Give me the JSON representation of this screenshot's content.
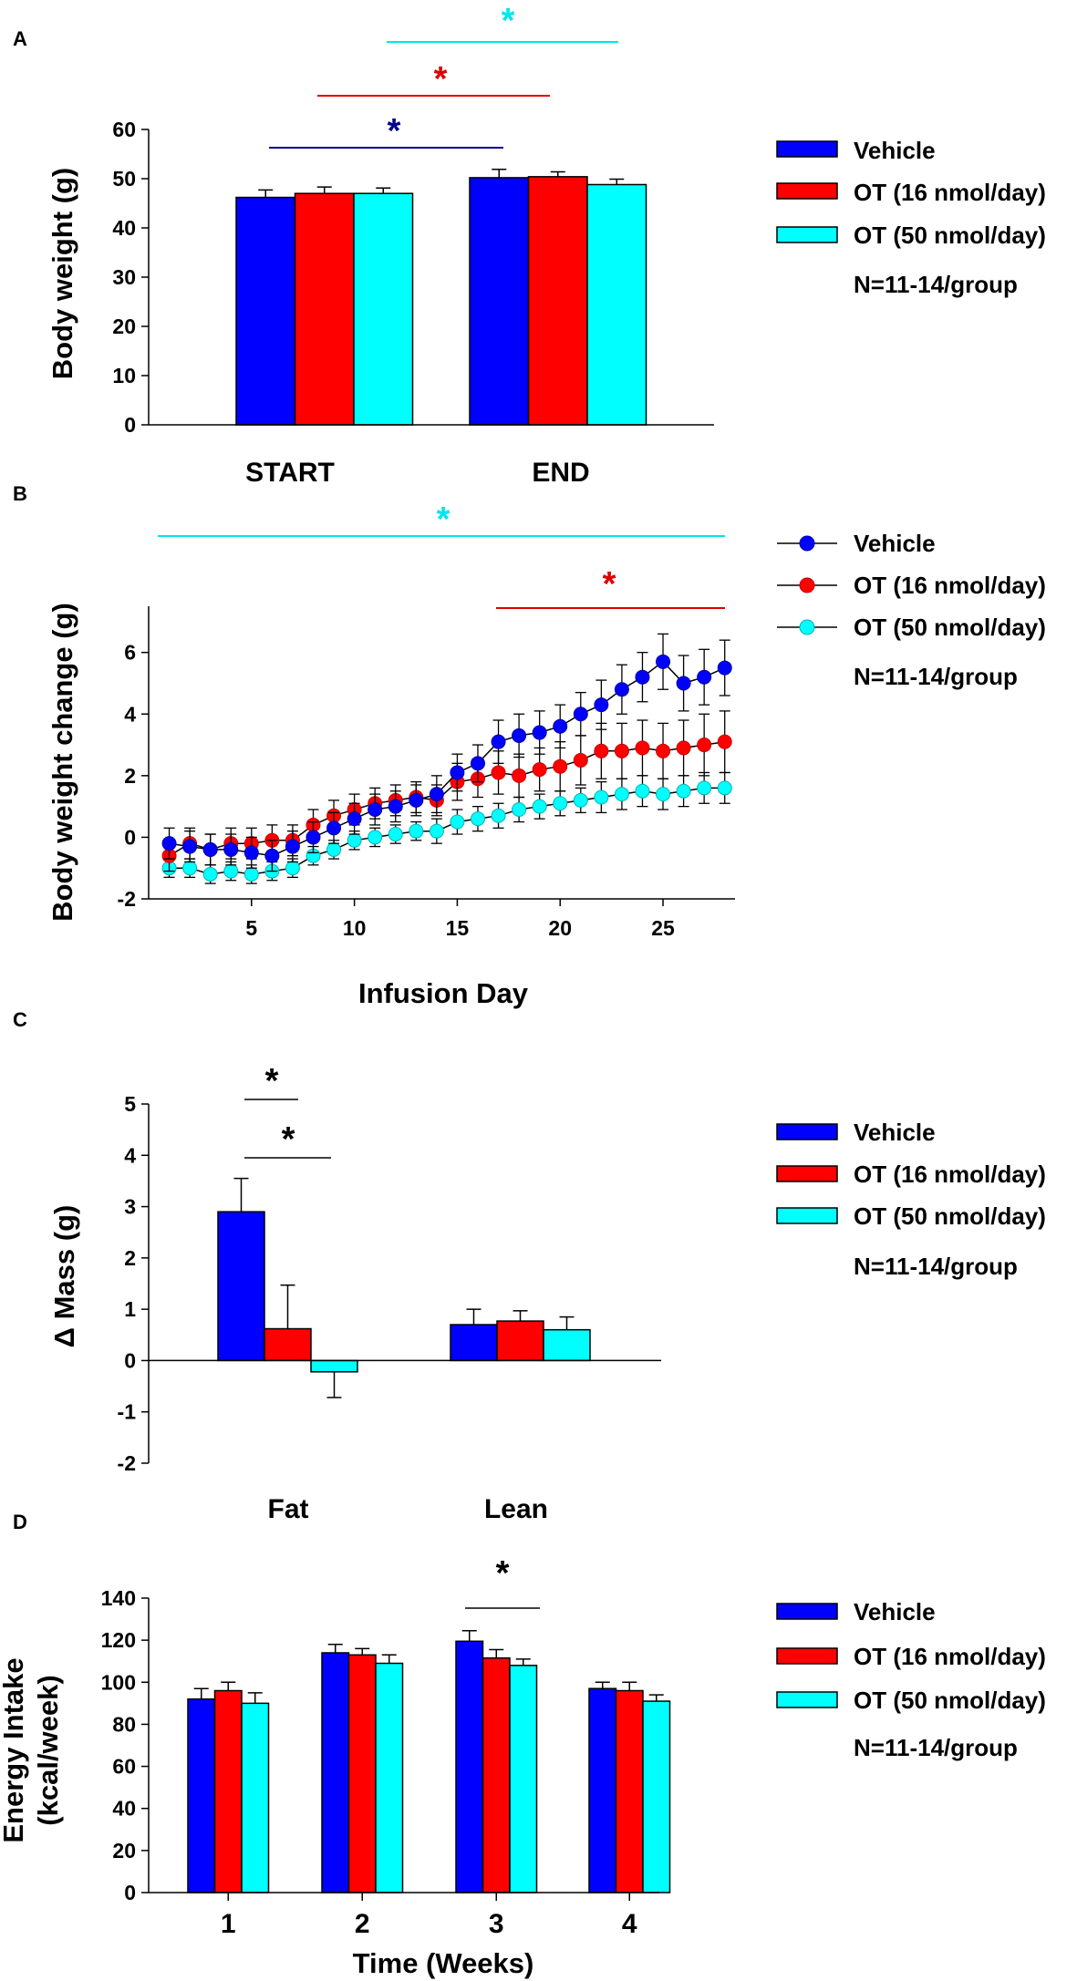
{
  "colors": {
    "vehicle": "#0000ff",
    "ot16": "#ff0000",
    "ot50": "#00ffff",
    "vehicle_dark": "#0000aa",
    "ot16_dark": "#cc0000",
    "ot50_dark": "#00b3b3",
    "sig_dark_blue": "#00008b",
    "sig_red": "#dd0000",
    "sig_cyan": "#00e5ee",
    "sig_black": "#000000"
  },
  "chart_data": [
    {
      "panel": "A",
      "type": "bar",
      "ylabel": "Body weight (g)",
      "xlabel": "",
      "ylim": [
        0,
        60
      ],
      "yticks": [
        "0",
        "10",
        "20",
        "30",
        "40",
        "50",
        "60"
      ],
      "categories": [
        "START",
        "END"
      ],
      "series": [
        {
          "name": "Vehicle",
          "values": [
            46.2,
            50.2
          ],
          "errors": [
            1.5,
            1.7
          ]
        },
        {
          "name": "OT (16 nmol/day)",
          "values": [
            47.0,
            50.4
          ],
          "errors": [
            1.3,
            1.0
          ]
        },
        {
          "name": "OT (50 nmol/day)",
          "values": [
            47.0,
            48.8
          ],
          "errors": [
            1.1,
            1.1
          ]
        }
      ],
      "legend": [
        "Vehicle",
        "OT (16 nmol/day)",
        "OT (50 nmol/day)"
      ],
      "note": "N=11-14/group",
      "significance": [
        {
          "label": "*",
          "color": "dark_blue"
        },
        {
          "label": "*",
          "color": "red"
        },
        {
          "label": "*",
          "color": "cyan"
        }
      ]
    },
    {
      "panel": "B",
      "type": "line",
      "ylabel": "Body weight change (g)",
      "xlabel": "Infusion Day",
      "xlim": [
        0,
        28.5
      ],
      "ylim": [
        -2,
        7.5
      ],
      "xticks": [
        "5",
        "10",
        "15",
        "20",
        "25"
      ],
      "yticks": [
        "-2",
        "0",
        "2",
        "4",
        "6"
      ],
      "x": [
        1,
        2,
        3,
        4,
        5,
        6,
        7,
        8,
        9,
        10,
        11,
        12,
        13,
        14,
        15,
        16,
        17,
        18,
        19,
        20,
        21,
        22,
        23,
        24,
        25,
        26,
        27,
        28
      ],
      "series": [
        {
          "name": "Vehicle",
          "values": [
            -0.2,
            -0.3,
            -0.4,
            -0.4,
            -0.5,
            -0.6,
            -0.3,
            0.0,
            0.3,
            0.6,
            0.9,
            1.0,
            1.2,
            1.4,
            2.1,
            2.4,
            3.1,
            3.3,
            3.4,
            3.6,
            4.0,
            4.3,
            4.8,
            5.2,
            5.7,
            5.0,
            5.2,
            5.5
          ],
          "errors": [
            0.5,
            0.5,
            0.5,
            0.5,
            0.5,
            0.5,
            0.5,
            0.5,
            0.5,
            0.5,
            0.5,
            0.5,
            0.5,
            0.6,
            0.6,
            0.6,
            0.7,
            0.7,
            0.7,
            0.7,
            0.7,
            0.8,
            0.8,
            0.8,
            0.9,
            0.9,
            0.9,
            0.9
          ]
        },
        {
          "name": "OT (16 nmol/day)",
          "values": [
            -0.6,
            -0.2,
            -0.4,
            -0.2,
            -0.2,
            -0.1,
            -0.1,
            0.4,
            0.7,
            0.9,
            1.1,
            1.2,
            1.3,
            1.2,
            1.8,
            1.9,
            2.1,
            2.0,
            2.2,
            2.3,
            2.5,
            2.8,
            2.8,
            2.9,
            2.8,
            2.9,
            3.0,
            3.1
          ],
          "errors": [
            0.5,
            0.5,
            0.5,
            0.5,
            0.5,
            0.5,
            0.5,
            0.5,
            0.5,
            0.5,
            0.5,
            0.5,
            0.5,
            0.5,
            0.6,
            0.6,
            0.7,
            0.7,
            0.7,
            0.8,
            0.8,
            0.9,
            0.9,
            0.9,
            0.9,
            0.9,
            1.0,
            1.0
          ]
        },
        {
          "name": "OT (50 nmol/day)",
          "values": [
            -1.0,
            -1.0,
            -1.2,
            -1.1,
            -1.2,
            -1.1,
            -1.0,
            -0.6,
            -0.4,
            -0.1,
            0.0,
            0.1,
            0.2,
            0.2,
            0.5,
            0.6,
            0.7,
            0.9,
            1.0,
            1.1,
            1.2,
            1.3,
            1.4,
            1.5,
            1.4,
            1.5,
            1.6,
            1.6
          ],
          "errors": [
            0.3,
            0.3,
            0.3,
            0.3,
            0.3,
            0.3,
            0.3,
            0.3,
            0.3,
            0.3,
            0.3,
            0.3,
            0.3,
            0.4,
            0.4,
            0.4,
            0.4,
            0.4,
            0.4,
            0.4,
            0.4,
            0.5,
            0.5,
            0.5,
            0.5,
            0.5,
            0.5,
            0.5
          ]
        }
      ],
      "legend": [
        "Vehicle",
        "OT (16 nmol/day)",
        "OT (50 nmol/day)"
      ],
      "note": "N=11-14/group",
      "significance": [
        {
          "label": "*",
          "color": "cyan"
        },
        {
          "label": "*",
          "color": "red"
        }
      ]
    },
    {
      "panel": "C",
      "type": "bar",
      "ylabel": "Δ Mass (g)",
      "xlabel": "",
      "ylim": [
        -2,
        5
      ],
      "yticks": [
        "-2",
        "-1",
        "0",
        "1",
        "2",
        "3",
        "4",
        "5"
      ],
      "categories": [
        "Fat",
        "Lean"
      ],
      "series": [
        {
          "name": "Vehicle",
          "values": [
            2.9,
            0.7
          ],
          "errors": [
            0.65,
            0.3
          ]
        },
        {
          "name": "OT (16 nmol/day)",
          "values": [
            0.62,
            0.77
          ],
          "errors": [
            0.85,
            0.2
          ]
        },
        {
          "name": "OT (50 nmol/day)",
          "values": [
            -0.22,
            0.6
          ],
          "errors": [
            0.5,
            0.25
          ]
        }
      ],
      "legend": [
        "Vehicle",
        "OT (16 nmol/day)",
        "OT (50 nmol/day)"
      ],
      "note": "N=11-14/group",
      "significance": [
        {
          "label": "*",
          "color": "black"
        },
        {
          "label": "*",
          "color": "black"
        }
      ]
    },
    {
      "panel": "D",
      "type": "bar",
      "ylabel": [
        "Energy Intake",
        "(kcal/week)"
      ],
      "xlabel": "Time (Weeks)",
      "ylim": [
        0,
        140
      ],
      "yticks": [
        "0",
        "20",
        "40",
        "60",
        "80",
        "100",
        "120",
        "140"
      ],
      "categories": [
        "1",
        "2",
        "3",
        "4"
      ],
      "series": [
        {
          "name": "Vehicle",
          "values": [
            92,
            114,
            119.5,
            97
          ],
          "errors": [
            5,
            4,
            5,
            3
          ]
        },
        {
          "name": "OT (16 nmol/day)",
          "values": [
            96,
            113,
            111.5,
            96
          ],
          "errors": [
            4,
            3,
            4,
            4
          ]
        },
        {
          "name": "OT (50 nmol/day)",
          "values": [
            90,
            109,
            108,
            91
          ],
          "errors": [
            5,
            4,
            3,
            3
          ]
        }
      ],
      "legend": [
        "Vehicle",
        "OT (16 nmol/day)",
        "OT (50 nmol/day)"
      ],
      "note": "N=11-14/group",
      "significance": [
        {
          "label": "*",
          "color": "black"
        }
      ]
    }
  ]
}
